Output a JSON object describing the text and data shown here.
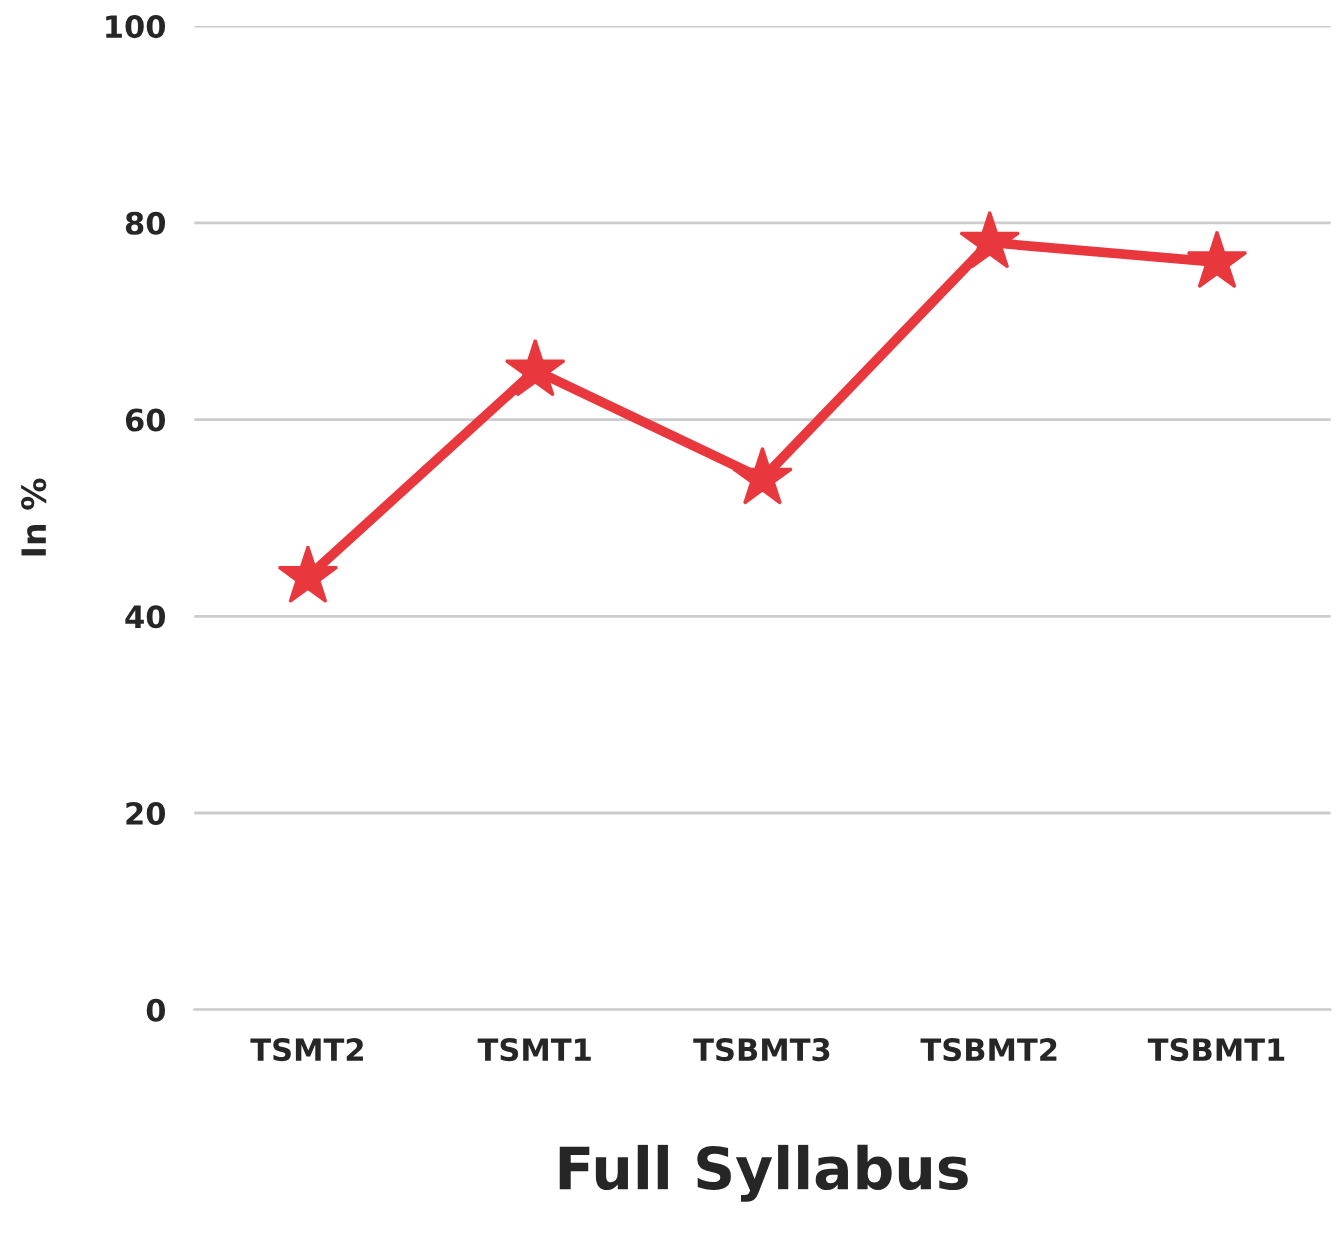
{
  "chart_data": {
    "type": "line",
    "xlabel": "Full Syllabus",
    "ylabel": "In %",
    "categories": [
      "TSMT2",
      "TSMT1",
      "TSBMT3",
      "TSBMT2",
      "TSBMT1"
    ],
    "series": [
      {
        "color": "#e8383d",
        "values": [
          44,
          65,
          54,
          78,
          76
        ]
      }
    ],
    "ylim": [
      0,
      100
    ],
    "yticks": [
      0,
      20,
      40,
      60,
      80,
      100
    ],
    "grid": "y",
    "marker": "star",
    "line_style": "solid"
  }
}
